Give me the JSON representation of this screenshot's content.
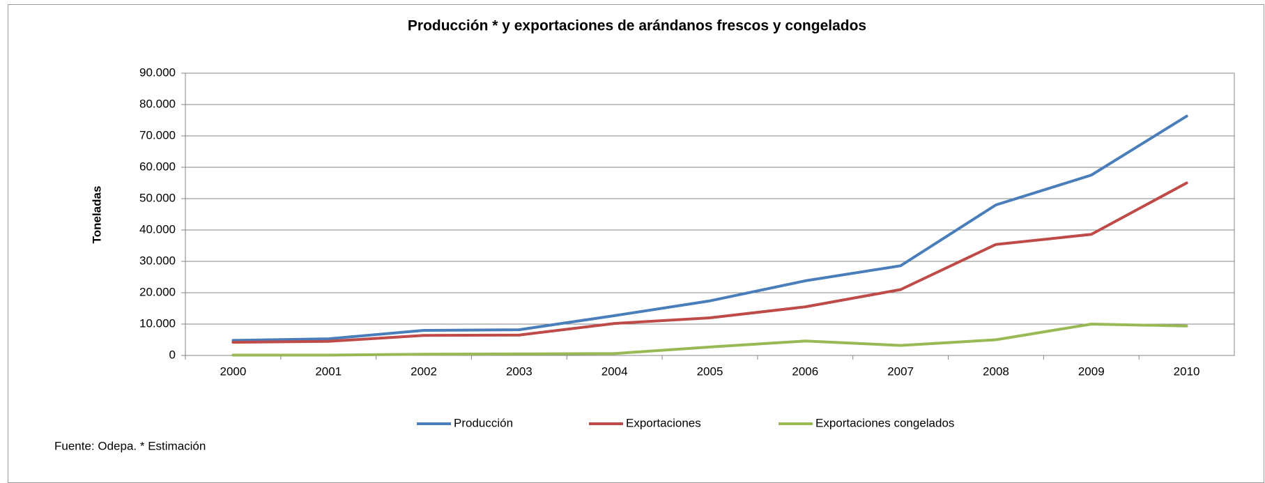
{
  "chart_data": {
    "type": "line",
    "title": "Producción * y exportaciones de arándanos frescos y congelados",
    "y_label": "Toneladas",
    "source": "Fuente: Odepa.  * Estimación",
    "categories": [
      "2000",
      "2001",
      "2002",
      "2003",
      "2004",
      "2005",
      "2006",
      "2007",
      "2008",
      "2009",
      "2010"
    ],
    "series": [
      {
        "name": "Producción",
        "color": "#4a7ebb",
        "values": [
          4800,
          5300,
          8000,
          8200,
          12700,
          17400,
          23800,
          28600,
          48000,
          57500,
          76300
        ]
      },
      {
        "name": "Exportaciones",
        "color": "#be4b48",
        "values": [
          4200,
          4500,
          6400,
          6500,
          10200,
          12000,
          15500,
          21000,
          35400,
          38600,
          55000
        ]
      },
      {
        "name": "Exportaciones congelados",
        "color": "#98b954",
        "values": [
          100,
          100,
          400,
          500,
          600,
          2700,
          4600,
          3200,
          5000,
          10000,
          9400
        ]
      }
    ],
    "ylim": [
      0,
      90000
    ],
    "yticks": [
      0,
      {
        "value": 10000,
        "label": "10.000"
      },
      {
        "value": 20000,
        "label": "20.000"
      },
      {
        "value": 30000,
        "label": "30.000"
      },
      {
        "value": 40000,
        "label": "40.000"
      },
      {
        "value": 50000,
        "label": "50.000"
      },
      {
        "value": 60000,
        "label": "60.000"
      },
      {
        "value": 70000,
        "label": "70.000"
      },
      {
        "value": 80000,
        "label": "80.000"
      },
      {
        "value": 90000,
        "label": "90.000"
      }
    ],
    "grid": true,
    "legend": "bottom"
  }
}
